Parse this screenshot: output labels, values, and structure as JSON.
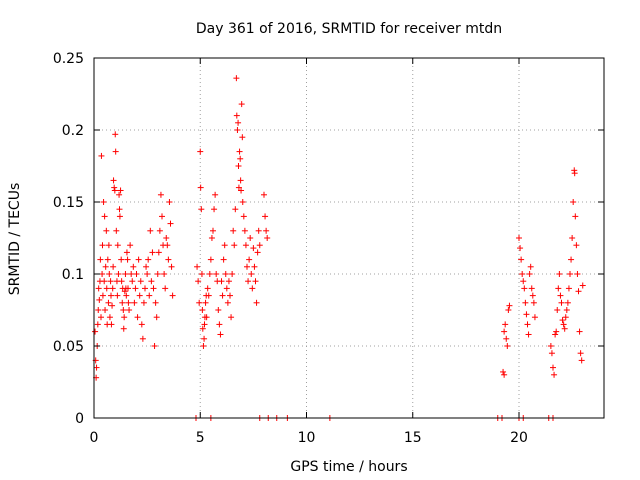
{
  "chart_data": {
    "type": "scatter",
    "title": "Day 361 of 2016, SRMTID for receiver mtdn",
    "xlabel": "GPS time / hours",
    "ylabel": "SRMTID / TECUs",
    "xlim": [
      0,
      24
    ],
    "ylim": [
      0,
      0.25
    ],
    "xticks": [
      0,
      5,
      10,
      15,
      20
    ],
    "xtick_labels": [
      "0",
      "5",
      "10",
      "15",
      "20"
    ],
    "yticks": [
      0,
      0.05,
      0.1,
      0.15,
      0.2,
      0.25
    ],
    "ytick_labels": [
      "0",
      "0.05",
      "0.1",
      "0.15",
      "0.2",
      "0.25"
    ],
    "grid": true,
    "marker": "+",
    "color": "#ff0000",
    "series": [
      {
        "name": "SRMTID",
        "points": [
          [
            0.05,
            0.06
          ],
          [
            0.08,
            0.04
          ],
          [
            0.1,
            0.028
          ],
          [
            0.12,
            0.035
          ],
          [
            0.15,
            0.05
          ],
          [
            0.18,
            0.065
          ],
          [
            0.2,
            0.075
          ],
          [
            0.22,
            0.09
          ],
          [
            0.25,
            0.082
          ],
          [
            0.28,
            0.095
          ],
          [
            0.3,
            0.11
          ],
          [
            0.33,
            0.07
          ],
          [
            0.35,
            0.182
          ],
          [
            0.38,
            0.1
          ],
          [
            0.4,
            0.12
          ],
          [
            0.42,
            0.085
          ],
          [
            0.45,
            0.15
          ],
          [
            0.48,
            0.095
          ],
          [
            0.5,
            0.14
          ],
          [
            0.52,
            0.075
          ],
          [
            0.55,
            0.105
          ],
          [
            0.58,
            0.13
          ],
          [
            0.6,
            0.09
          ],
          [
            0.62,
            0.065
          ],
          [
            0.65,
            0.11
          ],
          [
            0.68,
            0.08
          ],
          [
            0.7,
            0.12
          ],
          [
            0.72,
            0.1
          ],
          [
            0.75,
            0.07
          ],
          [
            0.78,
            0.095
          ],
          [
            0.8,
            0.085
          ],
          [
            0.82,
            0.065
          ],
          [
            0.85,
            0.078
          ],
          [
            0.88,
            0.09
          ],
          [
            0.9,
            0.105
          ],
          [
            0.92,
            0.165
          ],
          [
            0.95,
            0.16
          ],
          [
            0.98,
            0.158
          ],
          [
            1.0,
            0.197
          ],
          [
            1.02,
            0.185
          ],
          [
            1.05,
            0.13
          ],
          [
            1.08,
            0.095
          ],
          [
            1.1,
            0.085
          ],
          [
            1.12,
            0.12
          ],
          [
            1.15,
            0.1
          ],
          [
            1.18,
            0.155
          ],
          [
            1.2,
            0.145
          ],
          [
            1.22,
            0.14
          ],
          [
            1.25,
            0.158
          ],
          [
            1.28,
            0.11
          ],
          [
            1.3,
            0.095
          ],
          [
            1.33,
            0.08
          ],
          [
            1.35,
            0.09
          ],
          [
            1.38,
            0.075
          ],
          [
            1.4,
            0.062
          ],
          [
            1.42,
            0.07
          ],
          [
            1.45,
            0.088
          ],
          [
            1.48,
            0.1
          ],
          [
            1.5,
            0.09
          ],
          [
            1.52,
            0.085
          ],
          [
            1.55,
            0.115
          ],
          [
            1.58,
            0.11
          ],
          [
            1.6,
            0.09
          ],
          [
            1.62,
            0.08
          ],
          [
            1.65,
            0.075
          ],
          [
            1.7,
            0.12
          ],
          [
            1.75,
            0.1
          ],
          [
            1.8,
            0.095
          ],
          [
            1.85,
            0.105
          ],
          [
            1.9,
            0.08
          ],
          [
            1.95,
            0.09
          ],
          [
            2.0,
            0.1
          ],
          [
            2.05,
            0.07
          ],
          [
            2.1,
            0.11
          ],
          [
            2.15,
            0.085
          ],
          [
            2.2,
            0.095
          ],
          [
            2.25,
            0.065
          ],
          [
            2.3,
            0.055
          ],
          [
            2.35,
            0.08
          ],
          [
            2.4,
            0.09
          ],
          [
            2.45,
            0.105
          ],
          [
            2.5,
            0.1
          ],
          [
            2.55,
            0.11
          ],
          [
            2.6,
            0.085
          ],
          [
            2.65,
            0.13
          ],
          [
            2.7,
            0.095
          ],
          [
            2.75,
            0.115
          ],
          [
            2.8,
            0.09
          ],
          [
            2.85,
            0.05
          ],
          [
            2.9,
            0.08
          ],
          [
            2.95,
            0.07
          ],
          [
            3.0,
            0.1
          ],
          [
            3.05,
            0.115
          ],
          [
            3.1,
            0.13
          ],
          [
            3.15,
            0.155
          ],
          [
            3.2,
            0.14
          ],
          [
            3.25,
            0.12
          ],
          [
            3.3,
            0.1
          ],
          [
            3.35,
            0.09
          ],
          [
            3.4,
            0.125
          ],
          [
            3.45,
            0.12
          ],
          [
            3.5,
            0.11
          ],
          [
            3.55,
            0.15
          ],
          [
            3.6,
            0.135
          ],
          [
            3.65,
            0.105
          ],
          [
            3.7,
            0.085
          ],
          [
            4.85,
            0.105
          ],
          [
            4.9,
            0.095
          ],
          [
            4.95,
            0.08
          ],
          [
            5.0,
            0.185
          ],
          [
            5.02,
            0.16
          ],
          [
            5.05,
            0.145
          ],
          [
            5.08,
            0.1
          ],
          [
            5.1,
            0.075
          ],
          [
            5.12,
            0.062
          ],
          [
            5.15,
            0.05
          ],
          [
            5.18,
            0.055
          ],
          [
            5.2,
            0.065
          ],
          [
            5.22,
            0.07
          ],
          [
            5.25,
            0.08
          ],
          [
            5.28,
            0.085
          ],
          [
            5.3,
            0.07
          ],
          [
            5.35,
            0.09
          ],
          [
            5.4,
            0.085
          ],
          [
            5.45,
            0.1
          ],
          [
            5.5,
            0.11
          ],
          [
            5.55,
            0.125
          ],
          [
            5.6,
            0.13
          ],
          [
            5.65,
            0.145
          ],
          [
            5.7,
            0.155
          ],
          [
            5.75,
            0.1
          ],
          [
            5.8,
            0.095
          ],
          [
            5.85,
            0.075
          ],
          [
            5.9,
            0.065
          ],
          [
            5.95,
            0.058
          ],
          [
            6.0,
            0.095
          ],
          [
            6.05,
            0.085
          ],
          [
            6.1,
            0.11
          ],
          [
            6.15,
            0.12
          ],
          [
            6.2,
            0.1
          ],
          [
            6.25,
            0.09
          ],
          [
            6.3,
            0.08
          ],
          [
            6.35,
            0.095
          ],
          [
            6.4,
            0.085
          ],
          [
            6.45,
            0.07
          ],
          [
            6.5,
            0.1
          ],
          [
            6.55,
            0.13
          ],
          [
            6.6,
            0.12
          ],
          [
            6.65,
            0.145
          ],
          [
            6.7,
            0.236
          ],
          [
            6.72,
            0.21
          ],
          [
            6.75,
            0.2
          ],
          [
            6.78,
            0.205
          ],
          [
            6.8,
            0.175
          ],
          [
            6.82,
            0.16
          ],
          [
            6.85,
            0.185
          ],
          [
            6.88,
            0.18
          ],
          [
            6.9,
            0.165
          ],
          [
            6.92,
            0.158
          ],
          [
            6.95,
            0.218
          ],
          [
            6.98,
            0.195
          ],
          [
            7.0,
            0.15
          ],
          [
            7.05,
            0.14
          ],
          [
            7.1,
            0.13
          ],
          [
            7.15,
            0.12
          ],
          [
            7.2,
            0.105
          ],
          [
            7.25,
            0.095
          ],
          [
            7.3,
            0.11
          ],
          [
            7.35,
            0.125
          ],
          [
            7.4,
            0.1
          ],
          [
            7.45,
            0.09
          ],
          [
            7.5,
            0.118
          ],
          [
            7.55,
            0.105
          ],
          [
            7.6,
            0.095
          ],
          [
            7.65,
            0.08
          ],
          [
            7.7,
            0.115
          ],
          [
            7.75,
            0.13
          ],
          [
            7.8,
            0.12
          ],
          [
            8.0,
            0.155
          ],
          [
            8.05,
            0.14
          ],
          [
            8.1,
            0.13
          ],
          [
            8.15,
            0.125
          ],
          [
            19.3,
            0.06
          ],
          [
            19.35,
            0.065
          ],
          [
            19.4,
            0.055
          ],
          [
            19.45,
            0.05
          ],
          [
            19.5,
            0.075
          ],
          [
            19.55,
            0.078
          ],
          [
            19.25,
            0.032
          ],
          [
            19.3,
            0.03
          ],
          [
            20.0,
            0.125
          ],
          [
            20.05,
            0.118
          ],
          [
            20.1,
            0.11
          ],
          [
            20.15,
            0.1
          ],
          [
            20.2,
            0.095
          ],
          [
            20.25,
            0.09
          ],
          [
            20.3,
            0.08
          ],
          [
            20.35,
            0.072
          ],
          [
            20.4,
            0.065
          ],
          [
            20.45,
            0.058
          ],
          [
            20.5,
            0.1
          ],
          [
            20.55,
            0.105
          ],
          [
            20.6,
            0.09
          ],
          [
            20.65,
            0.085
          ],
          [
            20.7,
            0.08
          ],
          [
            20.75,
            0.07
          ],
          [
            21.5,
            0.05
          ],
          [
            21.55,
            0.045
          ],
          [
            21.6,
            0.035
          ],
          [
            21.65,
            0.03
          ],
          [
            21.7,
            0.058
          ],
          [
            21.75,
            0.06
          ],
          [
            21.8,
            0.075
          ],
          [
            21.85,
            0.09
          ],
          [
            21.9,
            0.1
          ],
          [
            21.95,
            0.085
          ],
          [
            22.0,
            0.08
          ],
          [
            22.05,
            0.068
          ],
          [
            22.1,
            0.065
          ],
          [
            22.15,
            0.062
          ],
          [
            22.2,
            0.07
          ],
          [
            22.25,
            0.075
          ],
          [
            22.3,
            0.08
          ],
          [
            22.35,
            0.09
          ],
          [
            22.4,
            0.1
          ],
          [
            22.45,
            0.11
          ],
          [
            22.5,
            0.125
          ],
          [
            22.55,
            0.15
          ],
          [
            22.6,
            0.172
          ],
          [
            22.62,
            0.17
          ],
          [
            22.65,
            0.14
          ],
          [
            22.7,
            0.12
          ],
          [
            22.75,
            0.1
          ],
          [
            22.8,
            0.088
          ],
          [
            22.85,
            0.06
          ],
          [
            22.9,
            0.045
          ],
          [
            22.95,
            0.04
          ],
          [
            23.0,
            0.092
          ],
          [
            4.8,
            0.0
          ],
          [
            5.5,
            0.0
          ],
          [
            7.8,
            0.0
          ],
          [
            8.2,
            0.0
          ],
          [
            8.6,
            0.0
          ],
          [
            9.1,
            0.0
          ],
          [
            11.1,
            0.0
          ],
          [
            19.0,
            0.0
          ],
          [
            19.2,
            0.0
          ],
          [
            20.0,
            0.0
          ],
          [
            20.2,
            0.0
          ],
          [
            21.4,
            0.0
          ],
          [
            21.6,
            0.0
          ]
        ]
      }
    ]
  }
}
